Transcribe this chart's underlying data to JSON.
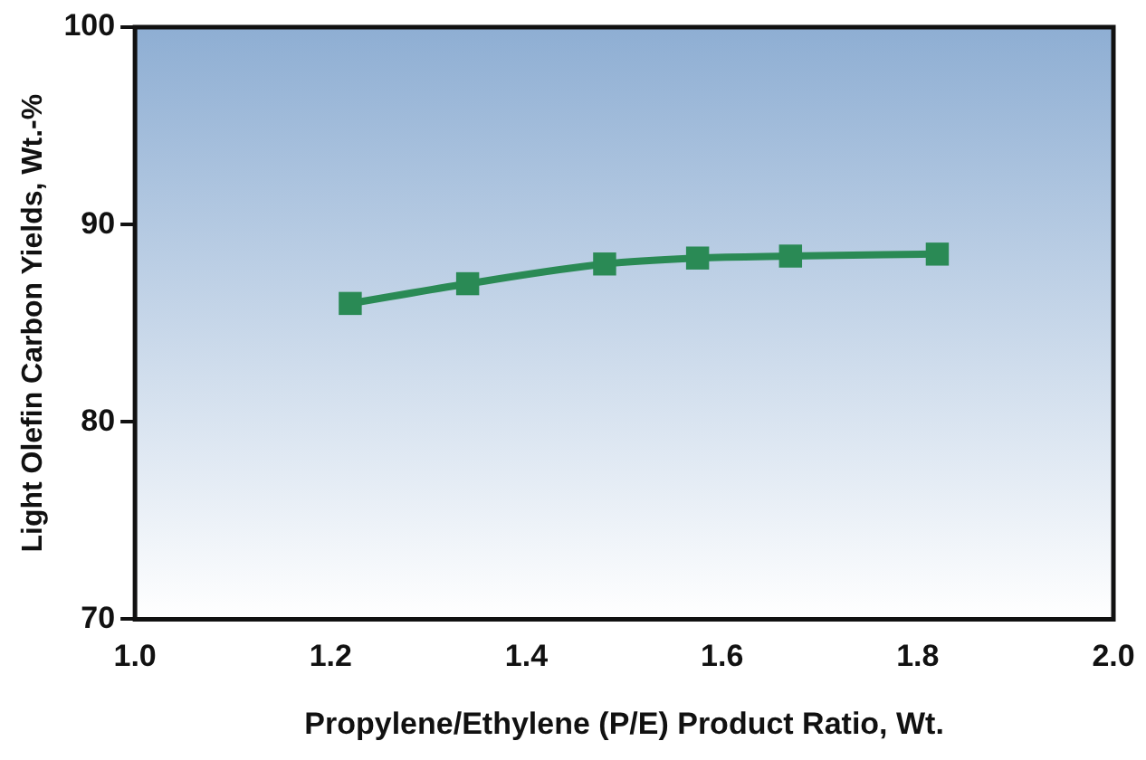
{
  "chart_data": {
    "type": "line",
    "xlabel": "Propylene/Ethylene (P/E) Product Ratio, Wt.",
    "ylabel": "Light Olefin Carbon Yields, Wt.-%",
    "x": [
      1.22,
      1.34,
      1.48,
      1.575,
      1.67,
      1.82
    ],
    "series": [
      {
        "color": "#2a8a55",
        "values": [
          86.0,
          87.0,
          88.0,
          88.3,
          88.4,
          88.5
        ]
      }
    ],
    "xlim": [
      1.0,
      2.0
    ],
    "xticks": [
      {
        "value": 1.0,
        "label": "1.0"
      },
      {
        "value": 1.2,
        "label": "1.2"
      },
      {
        "value": 1.4,
        "label": "1.4"
      },
      {
        "value": 1.6,
        "label": "1.6"
      },
      {
        "value": 1.8,
        "label": "1.8"
      },
      {
        "value": 2.0,
        "label": "2.0"
      }
    ],
    "ylim": [
      70,
      100
    ],
    "yticks": [
      70,
      80,
      90,
      100
    ],
    "grid": false,
    "legend": false,
    "marker": "square",
    "line_style": "solid"
  }
}
